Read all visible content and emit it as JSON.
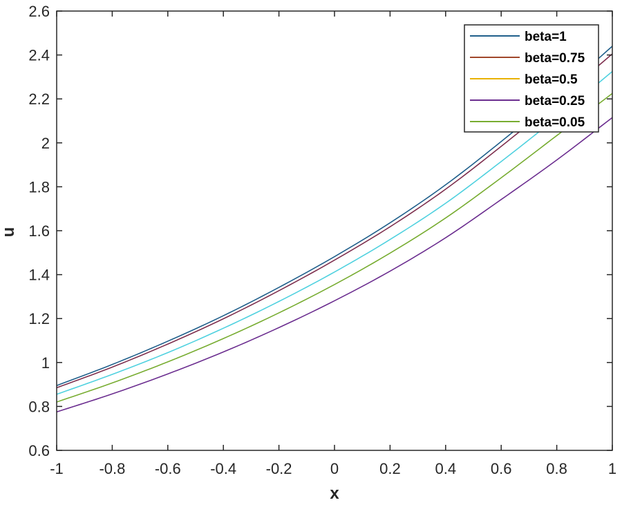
{
  "chart_data": {
    "type": "line",
    "title": "",
    "xlabel": "x",
    "ylabel": "u",
    "xlim": [
      -1,
      1
    ],
    "ylim": [
      0.6,
      2.6
    ],
    "xticks": [
      "-1",
      "-0.8",
      "-0.6",
      "-0.4",
      "-0.2",
      "0",
      "0.2",
      "0.4",
      "0.6",
      "0.8",
      "1"
    ],
    "yticks": [
      "0.6",
      "0.8",
      "1",
      "1.2",
      "1.4",
      "1.6",
      "1.8",
      "2",
      "2.2",
      "2.4",
      "2.6"
    ],
    "grid": false,
    "legend_position": "top-right",
    "x": [
      -1,
      -0.8,
      -0.6,
      -0.4,
      -0.2,
      0,
      0.2,
      0.4,
      0.6,
      0.8,
      1
    ],
    "series": [
      {
        "name": "beta=1",
        "color": "#1f5f8b",
        "line_color": "#1f5f8b",
        "values": [
          0.895,
          0.991,
          1.097,
          1.213,
          1.342,
          1.482,
          1.636,
          1.809,
          2.006,
          2.216,
          2.44
        ]
      },
      {
        "name": "beta=0.75",
        "color": "#a0462a",
        "line_color": "#7e2f4e",
        "values": [
          0.885,
          0.979,
          1.084,
          1.199,
          1.327,
          1.466,
          1.618,
          1.789,
          1.984,
          2.19,
          2.405
        ]
      },
      {
        "name": "beta=0.5",
        "color": "#e8b100",
        "line_color": "#4fd1df",
        "values": [
          0.855,
          0.946,
          1.045,
          1.156,
          1.278,
          1.412,
          1.56,
          1.725,
          1.915,
          2.115,
          2.325
        ]
      },
      {
        "name": "beta=0.25",
        "color": "#6b2d8f",
        "line_color": "#6b2d8f",
        "values": [
          0.775,
          0.857,
          0.948,
          1.048,
          1.159,
          1.281,
          1.416,
          1.568,
          1.742,
          1.922,
          2.115
        ]
      },
      {
        "name": "beta=0.05",
        "color": "#77ac30",
        "line_color": "#77ac30",
        "values": [
          0.82,
          0.907,
          1.003,
          1.109,
          1.226,
          1.355,
          1.498,
          1.658,
          1.841,
          2.033,
          2.225
        ]
      }
    ]
  }
}
